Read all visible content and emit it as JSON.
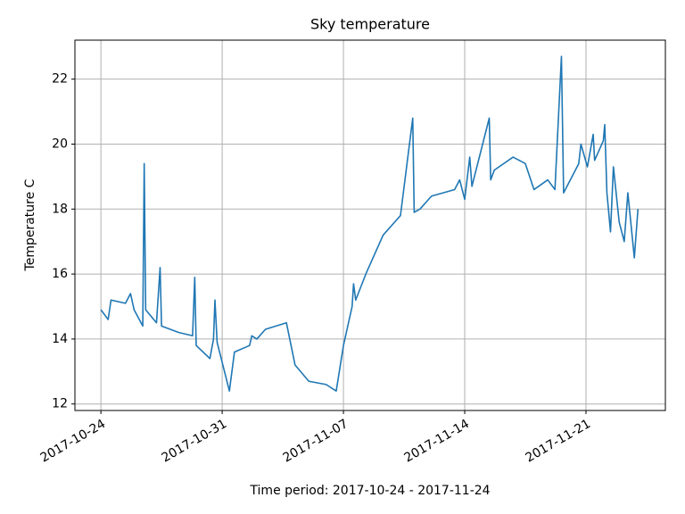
{
  "chart_data": {
    "type": "line",
    "title": "Sky temperature",
    "x_label": "Time period: 2017-10-24 - 2017-11-24",
    "y_label": "Temperature C",
    "x": [
      "2017-10-24 00:00",
      "2017-10-24 10:00",
      "2017-10-24 14:00",
      "2017-10-25 10:00",
      "2017-10-25 17:00",
      "2017-10-25 22:00",
      "2017-10-26 10:00",
      "2017-10-26 12:00",
      "2017-10-26 14:00",
      "2017-10-27 05:00",
      "2017-10-27 10:00",
      "2017-10-27 12:00",
      "2017-10-28 12:00",
      "2017-10-29 07:00",
      "2017-10-29 10:00",
      "2017-10-29 12:00",
      "2017-10-30 07:00",
      "2017-10-30 12:00",
      "2017-10-30 14:00",
      "2017-10-30 17:00",
      "2017-10-31 10:00",
      "2017-10-31 17:00",
      "2017-11-01 14:00",
      "2017-11-01 17:00",
      "2017-11-02 00:00",
      "2017-11-02 12:00",
      "2017-11-03 17:00",
      "2017-11-04 05:00",
      "2017-11-05 00:00",
      "2017-11-06 00:00",
      "2017-11-06 14:00",
      "2017-11-07 00:00",
      "2017-11-07 12:00",
      "2017-11-07 14:00",
      "2017-11-07 17:00",
      "2017-11-08 07:00",
      "2017-11-09 07:00",
      "2017-11-09 19:00",
      "2017-11-10 07:00",
      "2017-11-11 00:00",
      "2017-11-11 02:00",
      "2017-11-11 10:00",
      "2017-11-12 02:00",
      "2017-11-13 10:00",
      "2017-11-13 17:00",
      "2017-11-14 00:00",
      "2017-11-14 07:00",
      "2017-11-14 10:00",
      "2017-11-15 10:00",
      "2017-11-15 12:00",
      "2017-11-15 17:00",
      "2017-11-16 19:00",
      "2017-11-17 12:00",
      "2017-11-18 00:00",
      "2017-11-18 19:00",
      "2017-11-19 05:00",
      "2017-11-19 14:00",
      "2017-11-19 17:00",
      "2017-11-20 14:00",
      "2017-11-20 17:00",
      "2017-11-21 02:00",
      "2017-11-21 10:00",
      "2017-11-21 12:00",
      "2017-11-22 00:00",
      "2017-11-22 02:00",
      "2017-11-22 05:00",
      "2017-11-22 10:00",
      "2017-11-22 14:00",
      "2017-11-22 22:00",
      "2017-11-23 05:00",
      "2017-11-23 10:00",
      "2017-11-23 19:00",
      "2017-11-24 00:00"
    ],
    "series": [
      {
        "color": "#1f77b4",
        "values": [
          14.9,
          14.6,
          15.2,
          15.1,
          15.4,
          14.9,
          14.4,
          19.4,
          14.9,
          14.5,
          16.2,
          14.4,
          14.2,
          14.1,
          15.9,
          13.8,
          13.4,
          14.0,
          15.2,
          13.9,
          12.4,
          13.6,
          13.8,
          14.1,
          14.0,
          14.3,
          14.5,
          13.2,
          12.7,
          12.6,
          12.4,
          13.8,
          15.0,
          15.7,
          15.2,
          16.0,
          17.2,
          17.5,
          17.8,
          20.8,
          17.9,
          18.0,
          18.4,
          18.6,
          18.9,
          18.3,
          19.6,
          18.7,
          20.8,
          18.9,
          19.2,
          19.6,
          19.4,
          18.6,
          18.9,
          18.6,
          22.7,
          18.5,
          19.4,
          20.0,
          19.3,
          20.3,
          19.5,
          20.1,
          20.6,
          18.5,
          17.3,
          19.3,
          17.6,
          17.0,
          18.5,
          16.5,
          18.0
        ]
      }
    ],
    "xlim": [
      "2017-10-22 12:00",
      "2017-11-25 14:00"
    ],
    "xticks": [
      "2017-10-24",
      "2017-10-31",
      "2017-11-07",
      "2017-11-14",
      "2017-11-21"
    ],
    "ylim": [
      11.8,
      23.2
    ],
    "yticks": [
      12,
      14,
      16,
      18,
      20,
      22
    ],
    "grid": true
  }
}
